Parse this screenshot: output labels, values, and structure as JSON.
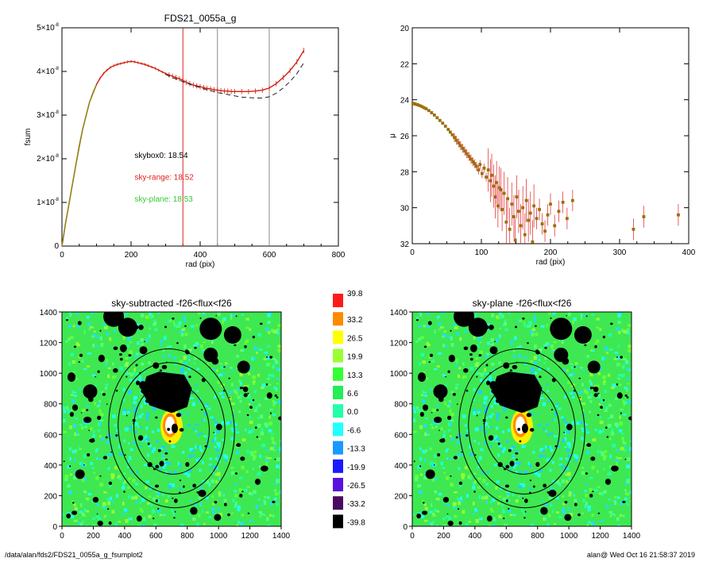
{
  "footer": {
    "path": "/data/alan/fds2/FDS21_0055a_g_fsumplot2",
    "stamp": "alan@  Wed Oct 16 21:58:37 2019"
  },
  "chart_data": [
    {
      "id": "fsum",
      "type": "line",
      "title": "FDS21_0055a_g",
      "xlabel": "rad (pix)",
      "ylabel": "fsum",
      "xlim": [
        0,
        800
      ],
      "ylim": [
        0,
        5e-08
      ],
      "xticks": [
        "0",
        "200",
        "400",
        "600",
        "800"
      ],
      "yticks": [
        {
          "v": 0,
          "m": "0",
          "e": ""
        },
        {
          "v": 1e-08,
          "m": "1×10",
          "e": "-8"
        },
        {
          "v": 2e-08,
          "m": "2×10",
          "e": "-8"
        },
        {
          "v": 3e-08,
          "m": "3×10",
          "e": "-8"
        },
        {
          "v": 4e-08,
          "m": "4×10",
          "e": "-8"
        },
        {
          "v": 5e-08,
          "m": "5×10",
          "e": "-8"
        }
      ],
      "vlines": [
        {
          "x": 350,
          "color": "#e02020"
        },
        {
          "x": 450,
          "color": "#888888"
        },
        {
          "x": 600,
          "color": "#888888"
        }
      ],
      "annotations": [
        {
          "text": "skybox0: 18.54",
          "color": "#000000",
          "x": 210,
          "y": 2.02e-08
        },
        {
          "text": "sky-range: 18.52",
          "color": "#e02020",
          "x": 210,
          "y": 1.52e-08
        },
        {
          "text": "sky-plane: 18.53",
          "color": "#33cc33",
          "x": 210,
          "y": 1.02e-08
        }
      ],
      "series": [
        {
          "style": "solid",
          "color": "#d02010",
          "x": [
            0,
            5,
            10,
            20,
            30,
            40,
            50,
            60,
            70,
            80,
            90,
            100,
            110,
            120,
            130,
            140,
            150,
            160,
            170,
            180,
            190,
            200,
            210,
            220,
            230,
            240,
            250,
            260,
            270,
            280,
            290,
            300,
            310,
            320,
            330,
            340,
            350,
            360,
            370,
            380,
            390,
            400,
            410,
            420,
            430,
            440,
            450,
            460,
            470,
            480,
            490,
            500,
            520,
            540,
            560,
            580,
            600,
            620,
            640,
            660,
            680,
            700
          ],
          "y": [
            0,
            2.5e-09,
            5e-09,
            9.5e-09,
            1.4e-08,
            1.85e-08,
            2.3e-08,
            2.68e-08,
            3e-08,
            3.3e-08,
            3.52e-08,
            3.7e-08,
            3.84e-08,
            3.95e-08,
            4.03e-08,
            4.09e-08,
            4.13e-08,
            4.16e-08,
            4.18e-08,
            4.2e-08,
            4.22e-08,
            4.23e-08,
            4.22e-08,
            4.2e-08,
            4.18e-08,
            4.16e-08,
            4.13e-08,
            4.1e-08,
            4.07e-08,
            4.03e-08,
            3.99e-08,
            3.95e-08,
            3.92e-08,
            3.89e-08,
            3.86e-08,
            3.83e-08,
            3.8e-08,
            3.75e-08,
            3.72e-08,
            3.69e-08,
            3.67e-08,
            3.65e-08,
            3.63e-08,
            3.61e-08,
            3.6e-08,
            3.58e-08,
            3.57e-08,
            3.56e-08,
            3.55e-08,
            3.55e-08,
            3.54e-08,
            3.54e-08,
            3.54e-08,
            3.54e-08,
            3.55e-08,
            3.57e-08,
            3.62e-08,
            3.72e-08,
            3.86e-08,
            4.02e-08,
            4.22e-08,
            4.48e-08
          ]
        },
        {
          "style": "dashed",
          "color": "#222222",
          "x": [
            300,
            320,
            340,
            360,
            380,
            400,
            420,
            440,
            460,
            480,
            500,
            520,
            540,
            560,
            580,
            600,
            620,
            640,
            660,
            680,
            700
          ],
          "y": [
            3.93e-08,
            3.86e-08,
            3.8e-08,
            3.73e-08,
            3.68e-08,
            3.63e-08,
            3.58e-08,
            3.54e-08,
            3.5e-08,
            3.47e-08,
            3.44e-08,
            3.41e-08,
            3.4e-08,
            3.39e-08,
            3.39e-08,
            3.42e-08,
            3.5e-08,
            3.62e-08,
            3.77e-08,
            3.95e-08,
            4.2e-08
          ]
        },
        {
          "style": "solid",
          "color": "#8a8a10",
          "x": [
            0,
            10,
            20,
            40,
            60,
            80,
            100
          ],
          "y": [
            0,
            5e-09,
            9.5e-09,
            1.85e-08,
            2.68e-08,
            3.3e-08,
            3.7e-08
          ]
        }
      ]
    },
    {
      "id": "mu",
      "type": "scatter",
      "title": "",
      "xlabel": "rad (pix)",
      "ylabel": "μ",
      "xlim": [
        0,
        400
      ],
      "ylim": [
        32,
        20
      ],
      "xticks": [
        "0",
        "100",
        "200",
        "300",
        "400"
      ],
      "yticks": [
        "20",
        "22",
        "24",
        "26",
        "28",
        "30",
        "32"
      ],
      "points": [
        [
          1,
          24.2
        ],
        [
          3,
          24.22
        ],
        [
          5,
          24.25
        ],
        [
          8,
          24.28
        ],
        [
          11,
          24.33
        ],
        [
          14,
          24.38
        ],
        [
          17,
          24.44
        ],
        [
          20,
          24.5
        ],
        [
          24,
          24.6
        ],
        [
          28,
          24.72
        ],
        [
          32,
          24.85
        ],
        [
          36,
          25.0
        ],
        [
          40,
          25.15
        ],
        [
          44,
          25.3
        ],
        [
          48,
          25.47
        ],
        [
          52,
          25.65
        ],
        [
          55,
          25.8
        ],
        [
          58,
          25.95
        ],
        [
          61,
          26.1
        ],
        [
          64,
          26.25
        ],
        [
          67,
          26.4
        ],
        [
          70,
          26.55
        ],
        [
          73,
          26.7
        ],
        [
          76,
          26.85
        ],
        [
          79,
          27.0
        ],
        [
          82,
          27.15
        ],
        [
          85,
          27.3
        ],
        [
          88,
          27.45
        ],
        [
          90,
          27.55
        ],
        [
          93,
          27.7
        ],
        [
          96,
          27.9
        ],
        [
          98,
          27.6
        ],
        [
          101,
          28.1
        ],
        [
          104,
          27.8
        ],
        [
          107,
          28.3
        ],
        [
          110,
          27.9
        ],
        [
          113,
          28.5
        ],
        [
          115,
          28.2
        ],
        [
          118,
          28.8
        ],
        [
          120,
          29.4
        ],
        [
          122,
          28.6
        ],
        [
          124,
          29.9
        ],
        [
          126,
          28.9
        ],
        [
          128,
          29.0
        ],
        [
          130,
          30.1
        ],
        [
          133,
          29.2
        ],
        [
          136,
          30.8
        ],
        [
          138,
          29.5
        ],
        [
          141,
          31.2
        ],
        [
          144,
          29.8
        ],
        [
          147,
          30.5
        ],
        [
          149,
          31.8
        ],
        [
          151,
          29.4
        ],
        [
          154,
          30.2
        ],
        [
          157,
          31.0
        ],
        [
          160,
          30.0
        ],
        [
          163,
          31.5
        ],
        [
          165,
          29.6
        ],
        [
          168,
          30.7
        ],
        [
          171,
          30.3
        ],
        [
          174,
          31.9
        ],
        [
          176,
          29.9
        ],
        [
          180,
          30.6
        ],
        [
          184,
          30.1
        ],
        [
          188,
          30.9
        ],
        [
          192,
          31.3
        ],
        [
          196,
          30.4
        ],
        [
          200,
          29.8
        ],
        [
          206,
          31.0
        ],
        [
          212,
          30.2
        ],
        [
          218,
          29.7
        ],
        [
          224,
          30.6
        ],
        [
          232,
          29.6
        ],
        [
          320,
          31.2
        ],
        [
          335,
          30.5
        ],
        [
          385,
          30.4
        ]
      ]
    },
    {
      "id": "img1",
      "type": "heatmap",
      "title": "sky-subtracted -f26<flux<f26",
      "xlim": [
        0,
        1400
      ],
      "ylim": [
        0,
        1400
      ],
      "xticks": [
        "0",
        "200",
        "400",
        "600",
        "800",
        "1000",
        "1200",
        "1400"
      ],
      "yticks": [
        "0",
        "200",
        "400",
        "600",
        "800",
        "1000",
        "1200",
        "1400"
      ]
    },
    {
      "id": "img2",
      "type": "heatmap",
      "title": "sky-plane -f26<flux<f26",
      "xlim": [
        0,
        1400
      ],
      "ylim": [
        0,
        1400
      ],
      "xticks": [
        "0",
        "200",
        "400",
        "600",
        "800",
        "1000",
        "1200",
        "1400"
      ],
      "yticks": [
        "0",
        "200",
        "400",
        "600",
        "800",
        "1000",
        "1200",
        "1400"
      ]
    }
  ],
  "colorbar": {
    "labels": [
      "39.8",
      "33.2",
      "26.5",
      "19.9",
      "13.3",
      "6.6",
      "0.0",
      "-6.6",
      "-13.3",
      "-19.9",
      "-26.5",
      "-33.2",
      "-39.8"
    ],
    "colors": [
      "#ff1a1a",
      "#ff8a00",
      "#ffff00",
      "#99ff33",
      "#33ff33",
      "#22ee55",
      "#22ffaa",
      "#22ffff",
      "#1a99ff",
      "#1a1aff",
      "#5a10e0",
      "#4a0a60",
      "#000000"
    ]
  }
}
